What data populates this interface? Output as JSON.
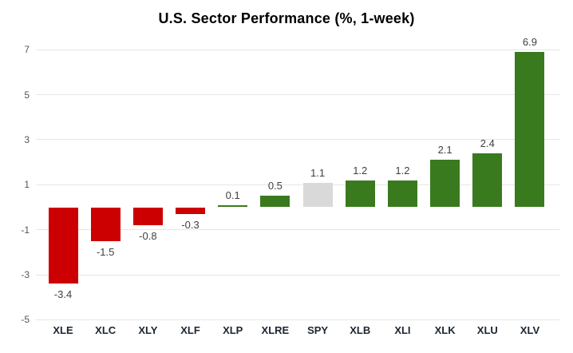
{
  "chart_data": {
    "type": "bar",
    "title": "U.S. Sector Performance (%, 1-week)",
    "xlabel": "",
    "ylabel": "",
    "categories": [
      "XLE",
      "XLC",
      "XLY",
      "XLF",
      "XLP",
      "XLRE",
      "SPY",
      "XLB",
      "XLI",
      "XLK",
      "XLU",
      "XLV"
    ],
    "values": [
      -3.4,
      -1.5,
      -0.8,
      -0.3,
      0.1,
      0.5,
      1.1,
      1.2,
      1.2,
      2.1,
      2.4,
      6.9
    ],
    "value_labels": [
      "-3.4",
      "-1.5",
      "-0.8",
      "-0.3",
      "0.1",
      "0.5",
      "1.1",
      "1.2",
      "1.2",
      "2.1",
      "2.4",
      "6.9"
    ],
    "bar_colors": [
      "#cc0000",
      "#cc0000",
      "#cc0000",
      "#cc0000",
      "#3a7a1e",
      "#3a7a1e",
      "#d9d9d9",
      "#3a7a1e",
      "#3a7a1e",
      "#3a7a1e",
      "#3a7a1e",
      "#3a7a1e"
    ],
    "yticks": [
      7,
      5,
      3,
      1,
      -1,
      -3,
      -5
    ],
    "ytick_labels": [
      "7",
      "5",
      "3",
      "1",
      "-1",
      "-3",
      "-5"
    ],
    "ylim": [
      -5,
      7
    ],
    "grid": true,
    "legend": "none",
    "colors": {
      "negative": "#cc0000",
      "positive": "#3a7a1e",
      "benchmark": "#d9d9d9",
      "gridline": "#e6e6e6",
      "tick_text": "#4d5661",
      "category_text": "#1b2631",
      "value_text": "#404040",
      "title_text": "#000000",
      "background": "#ffffff"
    }
  }
}
